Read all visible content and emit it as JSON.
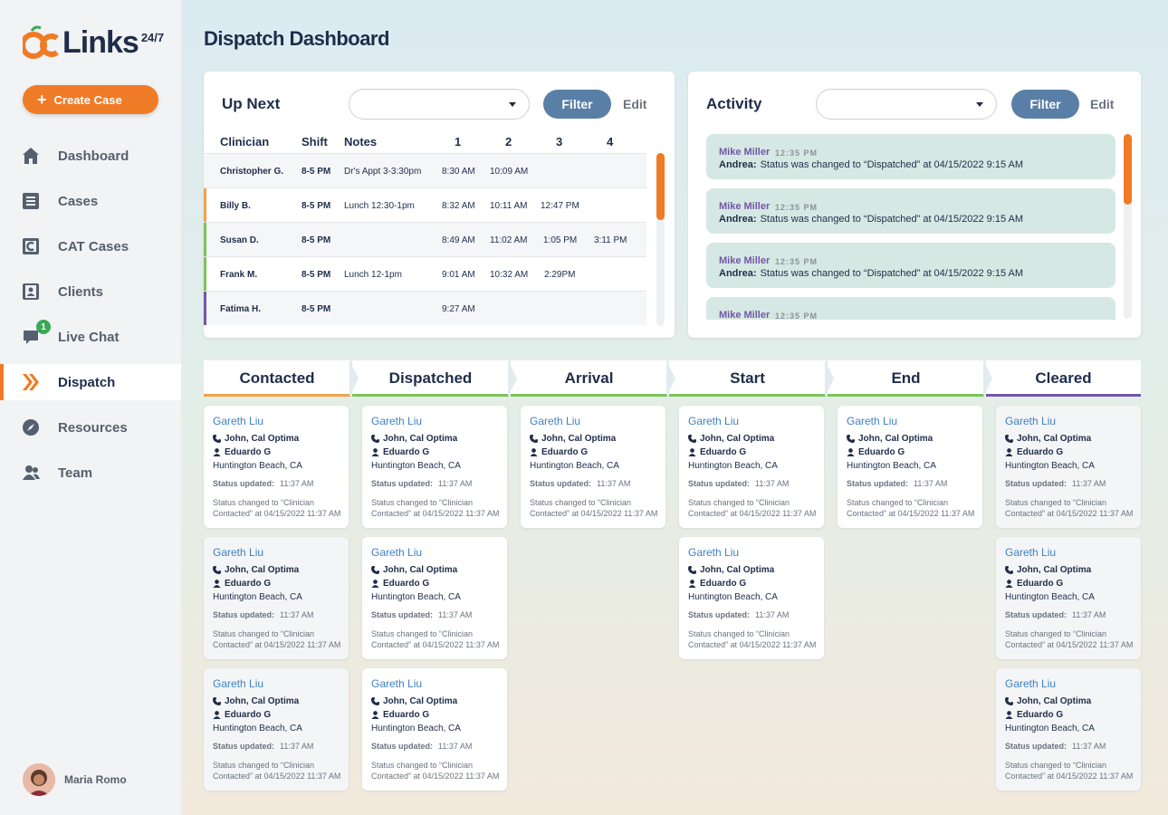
{
  "brand": {
    "name": "Links",
    "sup": "24/7"
  },
  "sidebar": {
    "create_label": "Create Case",
    "items": [
      {
        "label": "Dashboard",
        "icon": "home-icon"
      },
      {
        "label": "Cases",
        "icon": "document-icon"
      },
      {
        "label": "CAT Cases",
        "icon": "cat-document-icon"
      },
      {
        "label": "Clients",
        "icon": "contact-card-icon"
      },
      {
        "label": "Live Chat",
        "icon": "chat-icon",
        "badge": "1"
      },
      {
        "label": "Dispatch",
        "icon": "dispatch-chevrons-icon",
        "active": true
      },
      {
        "label": "Resources",
        "icon": "compass-icon"
      },
      {
        "label": "Team",
        "icon": "team-icon"
      }
    ],
    "user_name": "Maria Romo"
  },
  "page_title": "Dispatch Dashboard",
  "upnext": {
    "title": "Up Next",
    "filter_label": "Filter",
    "edit_label": "Edit",
    "headers": {
      "clinician": "Clinician",
      "shift": "Shift",
      "notes": "Notes",
      "c1": "1",
      "c2": "2",
      "c3": "3",
      "c4": "4"
    },
    "rows": [
      {
        "name": "Christopher G.",
        "shift": "8-5 PM",
        "notes": "Dr's Appt 3-3:30pm",
        "t1": "8:30 AM",
        "t2": "10:09 AM",
        "t3": "",
        "t4": ""
      },
      {
        "name": "Billy B.",
        "shift": "8-5 PM",
        "notes": "Lunch 12:30-1pm",
        "t1": "8:32 AM",
        "t2": "10:11 AM",
        "t3": "12:47 PM",
        "t4": ""
      },
      {
        "name": "Susan D.",
        "shift": "8-5 PM",
        "notes": "",
        "t1": "8:49 AM",
        "t2": "11:02 AM",
        "t3": "1:05 PM",
        "t4": "3:11 PM"
      },
      {
        "name": "Frank M.",
        "shift": "8-5 PM",
        "notes": "Lunch 12-1pm",
        "t1": "9:01 AM",
        "t2": "10:32 AM",
        "t3": "2:29PM",
        "t4": ""
      },
      {
        "name": "Fatima H.",
        "shift": "8-5 PM",
        "notes": "",
        "t1": "9:27 AM",
        "t2": "",
        "t3": "",
        "t4": ""
      }
    ]
  },
  "activity": {
    "title": "Activity",
    "filter_label": "Filter",
    "edit_label": "Edit",
    "items": [
      {
        "who": "Mike Miller",
        "time": "12:35 PM",
        "by": "Andrea:",
        "text": "Status was changed to “Dispatched” at 04/15/2022 9:15 AM"
      },
      {
        "who": "Mike Miller",
        "time": "12:35 PM",
        "by": "Andrea:",
        "text": "Status was changed to “Dispatched” at 04/15/2022 9:15 AM"
      },
      {
        "who": "Mike Miller",
        "time": "12:35 PM",
        "by": "Andrea:",
        "text": "Status was changed to “Dispatched” at 04/15/2022 9:15 AM"
      },
      {
        "who": "Mike Miller",
        "time": "12:35 PM",
        "by": "",
        "text": ""
      }
    ]
  },
  "columns": [
    {
      "label": "Contacted",
      "color": "#f0a24a"
    },
    {
      "label": "Dispatched",
      "color": "#7dc35a"
    },
    {
      "label": "Arrival",
      "color": "#7dc35a"
    },
    {
      "label": "Start",
      "color": "#7dc35a"
    },
    {
      "label": "End",
      "color": "#7dc35a"
    },
    {
      "label": "Cleared",
      "color": "#7257a6"
    }
  ],
  "card": {
    "name": "Gareth Liu",
    "contact": "John, Cal Optima",
    "person": "Eduardo G",
    "location": "Huntington Beach, CA",
    "status_label": "Status updated:",
    "status_time": "11:37 AM",
    "status_text": "Status changed to “Clinician Contacted” at 04/15/2022 11:37 AM"
  },
  "colors": {
    "accent": "#f07b26",
    "navy": "#1f2d4a",
    "filter": "#5a7fa6",
    "link": "#3f82c4",
    "activity_bg": "#d6e8e3"
  }
}
